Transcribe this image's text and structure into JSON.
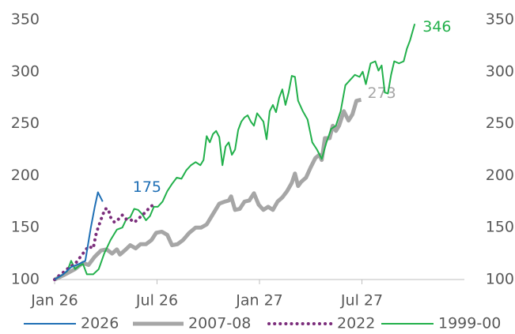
{
  "chart_data": {
    "type": "line",
    "xlim": [
      0,
      104
    ],
    "xticks": [
      {
        "value": 0,
        "label": "Jan 26"
      },
      {
        "value": 26,
        "label": "Jul 26"
      },
      {
        "value": 52,
        "label": "Jan 27"
      },
      {
        "value": 78,
        "label": "Jul 27"
      }
    ],
    "ylim": [
      100,
      350
    ],
    "yticks": [
      100,
      150,
      200,
      250,
      300,
      350
    ],
    "y2lim": [
      100,
      350
    ],
    "y2ticks": [
      100,
      150,
      200,
      250,
      300,
      350
    ],
    "legend": "bottom",
    "series": [
      {
        "name": "2026",
        "color": "#1f6fb5",
        "style": "solid",
        "x": [
          0,
          2.2,
          4.2,
          6.2,
          7.8,
          9.2,
          10.2,
          11,
          12.2
        ],
        "values": [
          100,
          105,
          112,
          115,
          118,
          150,
          170,
          184,
          175
        ],
        "end_label": "175"
      },
      {
        "name": "2007-08",
        "color": "#a6a6a6",
        "style": "thick",
        "x": [
          0,
          2.2,
          5.2,
          7.2,
          8.6,
          10.2,
          11.8,
          13.2,
          14.6,
          15.8,
          16.6,
          17.8,
          19.2,
          20.6,
          21.8,
          23.2,
          24.6,
          25.8,
          27.2,
          28.6,
          29.8,
          31.2,
          32.6,
          34.2,
          35.8,
          37.2,
          38.6,
          40.2,
          41.8,
          43.2,
          44.2,
          44.8,
          45.8,
          47,
          48.2,
          49.4,
          50.6,
          51.8,
          53,
          54.2,
          55.4,
          56.6,
          57.8,
          59,
          60.2,
          61,
          61.8,
          62.6,
          63.8,
          65,
          66.2,
          67.2,
          67.8,
          68.6,
          69.8,
          70.6,
          71.4,
          72.2,
          73.4,
          74.6,
          75.6,
          76.6,
          77.8
        ],
        "values": [
          100,
          104,
          110,
          116,
          114,
          122,
          128,
          129,
          125,
          129,
          124,
          128,
          133,
          130,
          134,
          134,
          138,
          145,
          146,
          143,
          133,
          134,
          138,
          145,
          150,
          150,
          153,
          163,
          173,
          175,
          176,
          180,
          167,
          168,
          175,
          176,
          183,
          172,
          167,
          170,
          167,
          175,
          179,
          185,
          193,
          202,
          190,
          194,
          198,
          208,
          217,
          220,
          215,
          236,
          236,
          248,
          243,
          248,
          262,
          253,
          259,
          272,
          273
        ],
        "end_label": "273"
      },
      {
        "name": "2022",
        "color": "#7b2d7b",
        "style": "dotted",
        "x": [
          0,
          1.2,
          2.6,
          3.8,
          5.2,
          6.2,
          7.2,
          8.6,
          9.8,
          10.6,
          11.8,
          12.8,
          13.6,
          14.2,
          15.2,
          16.2,
          17.2,
          18.2,
          19.2,
          20.2,
          21.2,
          22.2,
          23.2,
          24.2,
          25.2
        ],
        "values": [
          100,
          104,
          108,
          112,
          115,
          120,
          125,
          132,
          130,
          145,
          158,
          168,
          168,
          160,
          155,
          158,
          162,
          158,
          158,
          155,
          158,
          162,
          165,
          170,
          172
        ]
      },
      {
        "name": "1999-00",
        "color": "#22b04b",
        "style": "solid",
        "x": [
          0,
          1.8,
          3.2,
          4.2,
          5.2,
          6.2,
          7.2,
          8.2,
          9.8,
          11.2,
          12.6,
          14.2,
          15.8,
          17.2,
          18.2,
          19.2,
          20.2,
          21.2,
          22.2,
          23.2,
          24.2,
          25.2,
          26.2,
          27.4,
          28.6,
          29.8,
          31,
          32.2,
          33.4,
          34.6,
          35.8,
          37,
          37.8,
          38.6,
          39.4,
          40.2,
          41,
          41.8,
          42.6,
          43.4,
          44.2,
          45,
          45.8,
          46.6,
          47.4,
          48.2,
          49,
          49.8,
          50.6,
          51.4,
          52.2,
          53,
          53.8,
          54.6,
          55.4,
          56.2,
          57,
          57.8,
          58.6,
          59.4,
          60.2,
          61,
          61.8,
          63,
          64.2,
          65.4,
          66.6,
          67.8,
          69,
          70.2,
          71.4,
          72.6,
          73.8,
          75,
          76.2,
          77.4,
          78.2,
          79,
          80.2,
          81.4,
          82.2,
          83,
          83.8,
          84.6,
          85.4,
          86.2,
          87.4,
          88.6,
          89.4,
          90.2,
          91.4
        ],
        "values": [
          100,
          104,
          108,
          118,
          110,
          113,
          115,
          105,
          105,
          110,
          125,
          138,
          148,
          150,
          158,
          160,
          168,
          167,
          163,
          157,
          161,
          170,
          170,
          175,
          185,
          192,
          198,
          197,
          205,
          210,
          213,
          210,
          215,
          238,
          232,
          240,
          243,
          237,
          210,
          228,
          232,
          220,
          225,
          244,
          252,
          256,
          258,
          252,
          248,
          260,
          256,
          252,
          235,
          262,
          268,
          261,
          275,
          283,
          268,
          280,
          296,
          295,
          272,
          262,
          254,
          232,
          225,
          216,
          232,
          245,
          248,
          262,
          287,
          292,
          297,
          295,
          300,
          288,
          308,
          310,
          301,
          306,
          280,
          279,
          297,
          310,
          308,
          310,
          322,
          330,
          346
        ],
        "end_label": "346"
      }
    ]
  }
}
